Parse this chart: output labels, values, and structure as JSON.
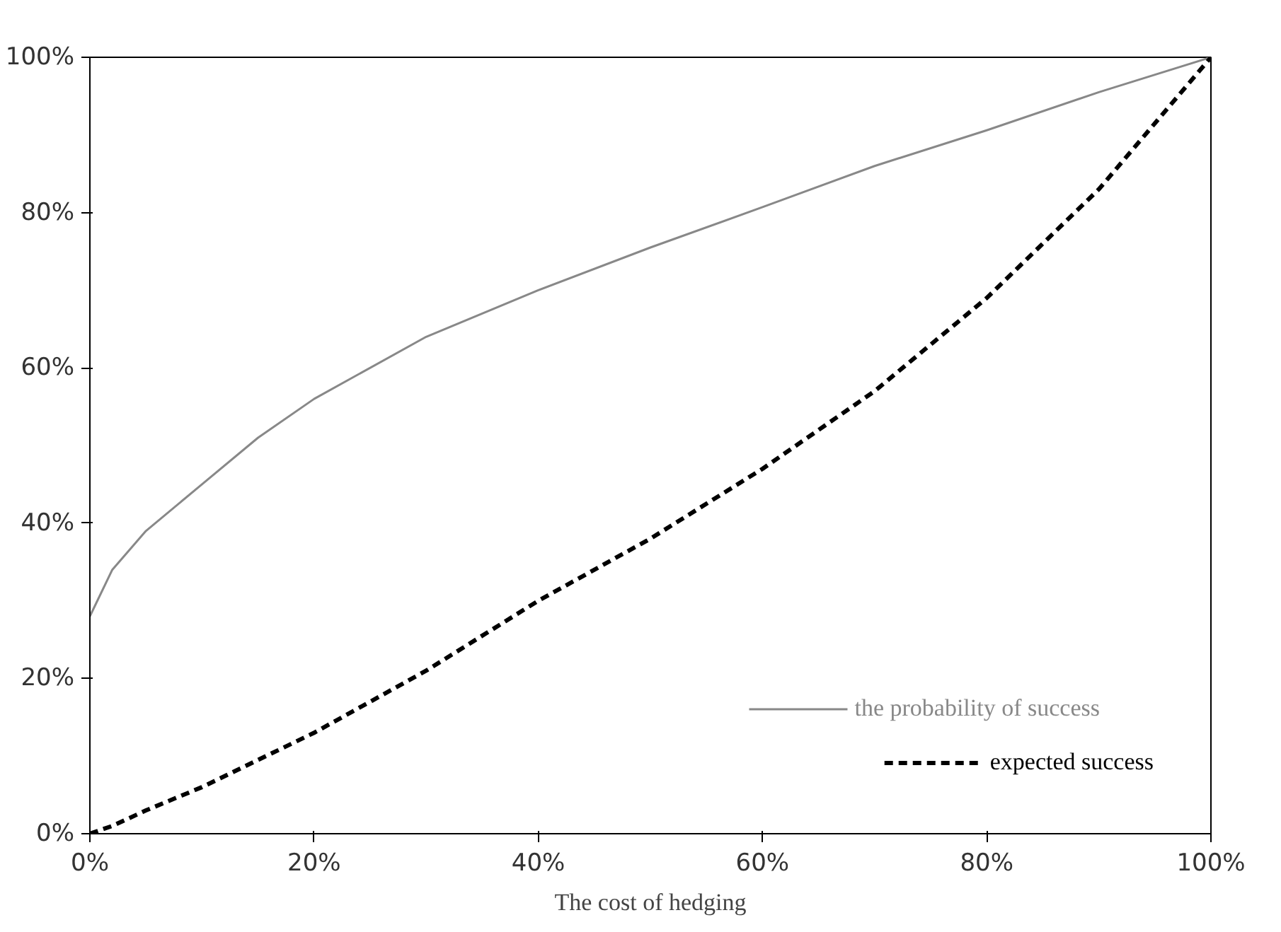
{
  "chart_data": {
    "type": "line",
    "xlabel": "The cost of hedging",
    "x": [
      0,
      2,
      5,
      10,
      15,
      20,
      30,
      40,
      50,
      60,
      70,
      80,
      90,
      100
    ],
    "series": [
      {
        "name": "the probability of success",
        "color": "#888888",
        "line_style": "solid",
        "values": [
          28,
          34,
          39,
          45,
          51,
          56,
          64,
          70,
          75.5,
          80.7,
          86,
          90.6,
          95.5,
          100
        ]
      },
      {
        "name": "expected success",
        "color": "#000000",
        "line_style": "dashed",
        "values": [
          0,
          1,
          3,
          6,
          9.5,
          13,
          21,
          30,
          38,
          47,
          57,
          69,
          83,
          100
        ]
      }
    ],
    "xlim": [
      0,
      100
    ],
    "ylim": [
      0,
      100
    ],
    "xticks": [
      {
        "value": 0,
        "label": "0%"
      },
      {
        "value": 20,
        "label": "20%"
      },
      {
        "value": 40,
        "label": "40%"
      },
      {
        "value": 60,
        "label": "60%"
      },
      {
        "value": 80,
        "label": "80%"
      },
      {
        "value": 100,
        "label": "100%"
      }
    ],
    "yticks": [
      {
        "value": 0,
        "label": "0%"
      },
      {
        "value": 20,
        "label": "20%"
      },
      {
        "value": 40,
        "label": "40%"
      },
      {
        "value": 60,
        "label": "60%"
      },
      {
        "value": 80,
        "label": "80%"
      },
      {
        "value": 100,
        "label": "100%"
      }
    ],
    "grid": false,
    "legend": "bottom right",
    "marker": "none"
  }
}
